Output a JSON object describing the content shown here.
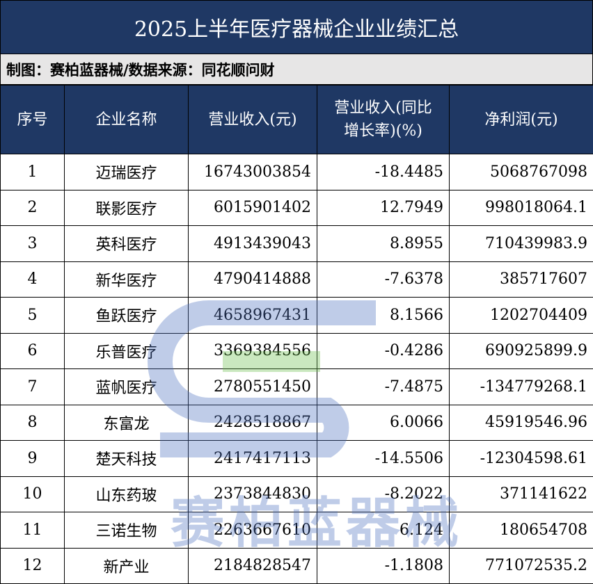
{
  "header": {
    "title": "2025上半年医疗器械企业业绩汇总",
    "subtitle": "制图：赛柏蓝器械/数据来源：同花顺问财"
  },
  "watermark": "赛柏蓝器械",
  "table": {
    "columns": [
      "序号",
      "企业名称",
      "营业收入(元)",
      "营业收入(同比增长率)(%)",
      "净利润(元)"
    ],
    "rows": [
      [
        "1",
        "迈瑞医疗",
        "16743003854",
        "-18.4485",
        "5068767098"
      ],
      [
        "2",
        "联影医疗",
        "6015901402",
        "12.7949",
        "998018064.1"
      ],
      [
        "3",
        "英科医疗",
        "4913439043",
        "8.8955",
        "710439983.9"
      ],
      [
        "4",
        "新华医疗",
        "4790414888",
        "-7.6378",
        "385717607"
      ],
      [
        "5",
        "鱼跃医疗",
        "4658967431",
        "8.1566",
        "1202704409"
      ],
      [
        "6",
        "乐普医疗",
        "3369384556",
        "-0.4286",
        "690925899.9"
      ],
      [
        "7",
        "蓝帆医疗",
        "2780551450",
        "-7.4875",
        "-134779268.1"
      ],
      [
        "8",
        "东富龙",
        "2428518867",
        "6.0066",
        "45919546.96"
      ],
      [
        "9",
        "楚天科技",
        "2417417113",
        "-14.5506",
        "-12304598.61"
      ],
      [
        "10",
        "山东药玻",
        "2373844830",
        "-8.2022",
        "371141622"
      ],
      [
        "11",
        "三诺生物",
        "2263667610",
        "6.124",
        "180654708"
      ],
      [
        "12",
        "新产业",
        "2184828547",
        "-1.1808",
        "771072535.2"
      ]
    ]
  }
}
